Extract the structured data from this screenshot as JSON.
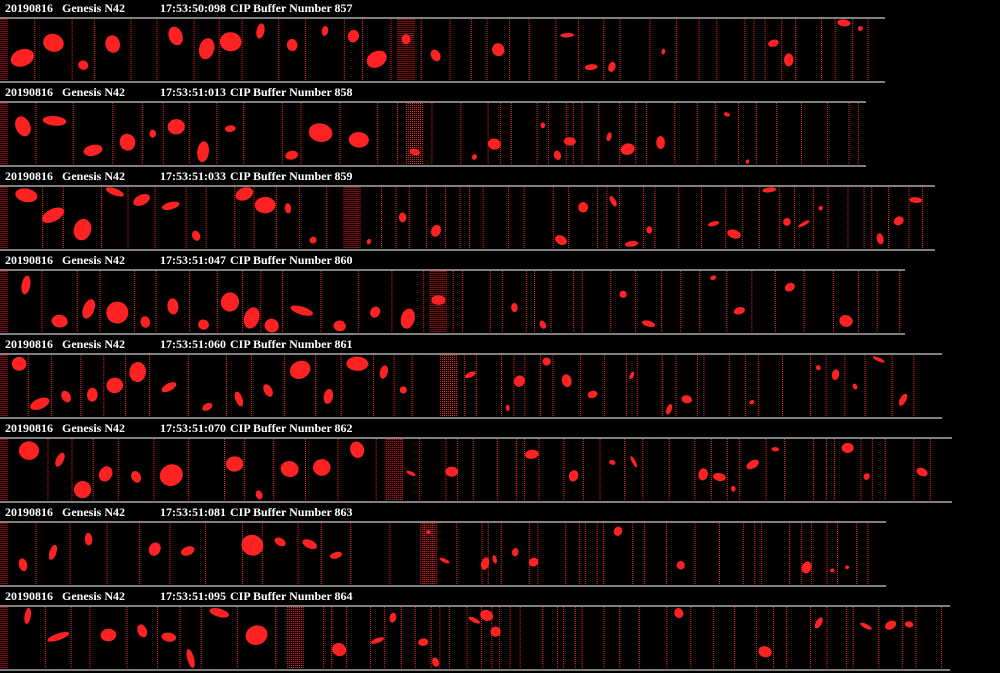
{
  "strips": [
    {
      "date": "20190816",
      "probe": "Genesis N42",
      "time": "17:53:50:098",
      "buffer": "CIP Buffer Number 857"
    },
    {
      "date": "20190816",
      "probe": "Genesis N42",
      "time": "17:53:51:013",
      "buffer": "CIP Buffer Number 858"
    },
    {
      "date": "20190816",
      "probe": "Genesis N42",
      "time": "17:53:51:033",
      "buffer": "CIP Buffer Number 859"
    },
    {
      "date": "20190816",
      "probe": "Genesis N42",
      "time": "17:53:51:047",
      "buffer": "CIP Buffer Number 860"
    },
    {
      "date": "20190816",
      "probe": "Genesis N42",
      "time": "17:53:51:060",
      "buffer": "CIP Buffer Number 861"
    },
    {
      "date": "20190816",
      "probe": "Genesis N42",
      "time": "17:53:51:070",
      "buffer": "CIP Buffer Number 862"
    },
    {
      "date": "20190816",
      "probe": "Genesis N42",
      "time": "17:53:51:081",
      "buffer": "CIP Buffer Number 863"
    },
    {
      "date": "20190816",
      "probe": "Genesis N42",
      "time": "17:53:51:095",
      "buffer": "CIP Buffer Number 864"
    }
  ]
}
